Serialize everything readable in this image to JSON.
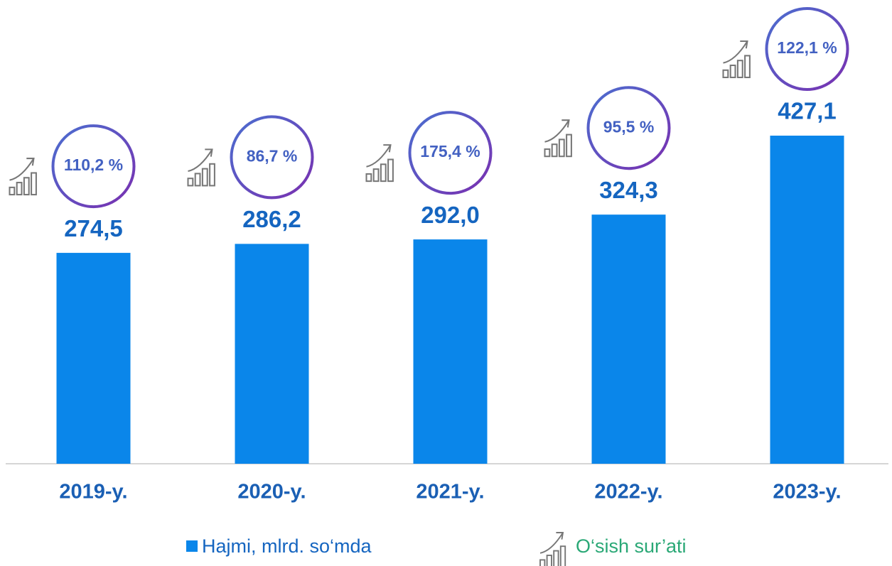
{
  "chart_data": {
    "type": "bar",
    "categories": [
      "2019-y.",
      "2020-y.",
      "2021-y.",
      "2022-y.",
      "2023-y."
    ],
    "series": [
      {
        "name": "Hajmi, mlrd. so‘mda",
        "color": "#0a86ea",
        "values": [
          274.5,
          286.2,
          292.0,
          324.3,
          427.1
        ],
        "value_labels": [
          "274,5",
          "286,2",
          "292,0",
          "324,3",
          "427,1"
        ]
      },
      {
        "name": "O‘sish sur’ati",
        "color": "#2aa876",
        "values": [
          110.2,
          86.7,
          175.4,
          95.5,
          122.1
        ],
        "value_labels": [
          "110,2 %",
          "86,7 %",
          "175,4 %",
          "95,5 %",
          "122,1 %"
        ]
      }
    ]
  }
}
